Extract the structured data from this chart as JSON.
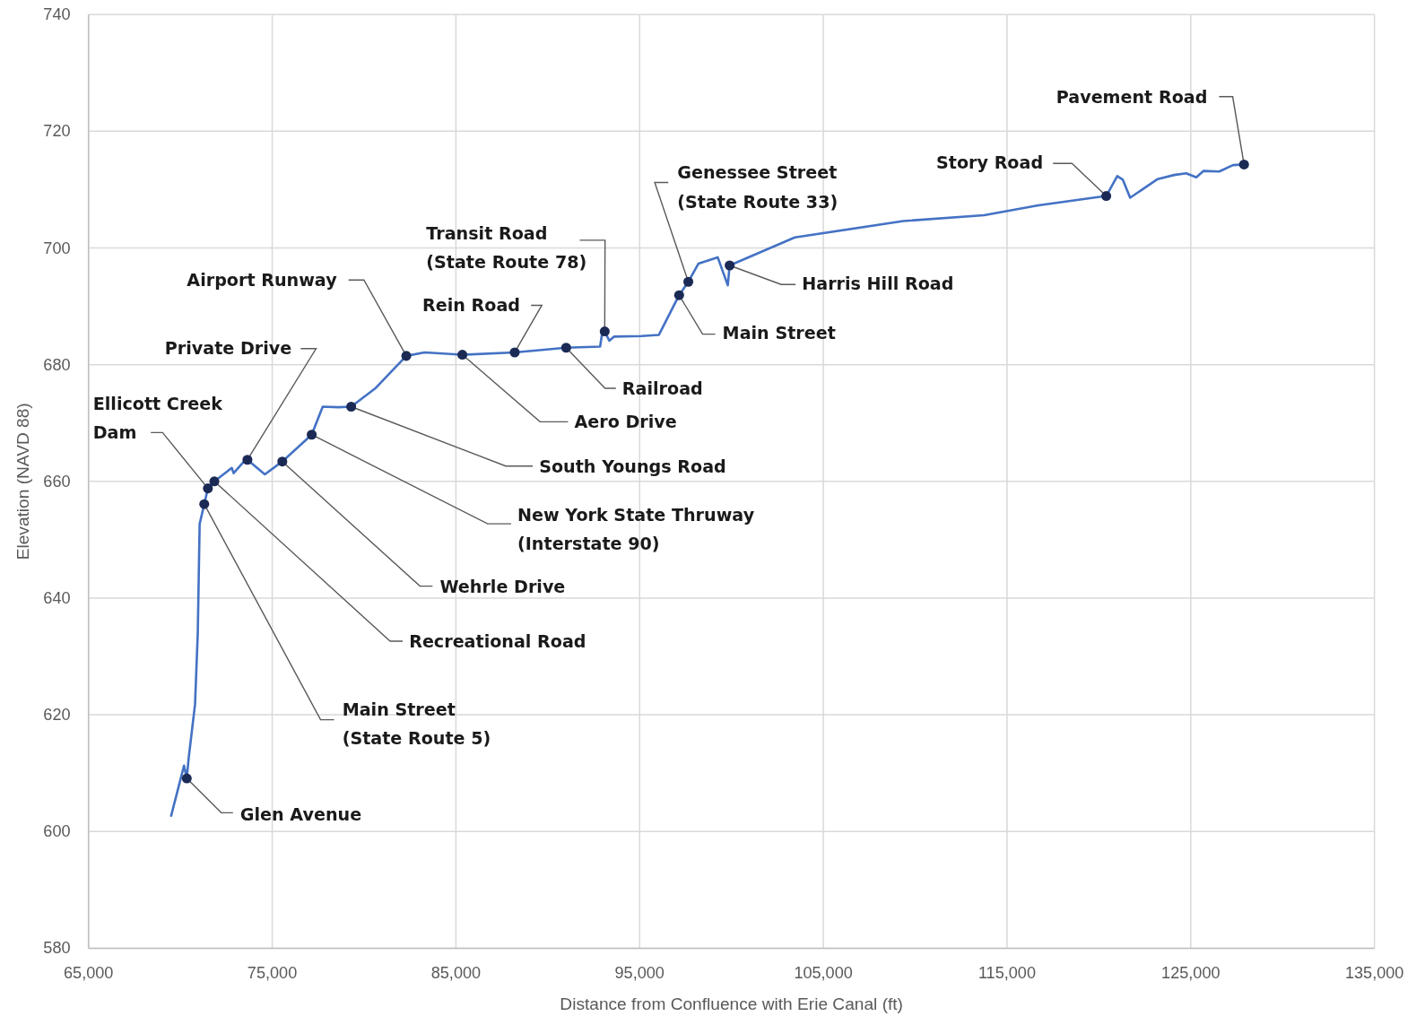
{
  "chart_data": {
    "type": "line",
    "xlabel": "Distance from Confluence with Erie Canal (ft)",
    "ylabel": "Elevation (NAVD 88)",
    "xlim": [
      65000,
      135000
    ],
    "xticks": [
      {
        "value": 65000,
        "label": "65,000"
      },
      {
        "value": 75000,
        "label": "75,000"
      },
      {
        "value": 85000,
        "label": "85,000"
      },
      {
        "value": 95000,
        "label": "95,000"
      },
      {
        "value": 105000,
        "label": "105,000"
      },
      {
        "value": 115000,
        "label": "115,000"
      },
      {
        "value": 125000,
        "label": "125,000"
      },
      {
        "value": 135000,
        "label": "135,000"
      }
    ],
    "ylim": [
      580,
      740
    ],
    "yticks": [
      580,
      600,
      620,
      640,
      660,
      680,
      700,
      720,
      740
    ],
    "grid": true,
    "series": [
      {
        "color": "#4472c4",
        "marker": "none",
        "line_style": "solid",
        "x": [
          69500,
          70200,
          70350,
          70450,
          70800,
          70950,
          71050,
          71300,
          71500,
          71850,
          72550,
          72800,
          72900,
          73550,
          73650,
          74600,
          75550,
          77150,
          77750,
          78600,
          79300,
          80600,
          82300,
          83300,
          85350,
          88200,
          91000,
          92850,
          92950,
          93100,
          93350,
          93600,
          95100,
          96050,
          97150,
          97650,
          98200,
          99250,
          99800,
          99900,
          103450,
          109350,
          113750,
          116700,
          120400,
          121000,
          121300,
          121700,
          123200,
          124100,
          124750,
          125300,
          125700,
          126550,
          127300,
          127900
        ],
        "values": [
          602.7,
          611.3,
          609.1,
          612.5,
          621.8,
          634.2,
          652.7,
          656.1,
          658.8,
          660.0,
          661.7,
          662.3,
          661.4,
          663.7,
          663.7,
          661.2,
          663.4,
          668.0,
          672.8,
          672.7,
          672.8,
          675.9,
          681.5,
          682.1,
          681.7,
          682.1,
          682.9,
          683.1,
          685.2,
          685.7,
          684.1,
          684.8,
          684.9,
          685.1,
          691.9,
          694.2,
          697.3,
          698.4,
          693.6,
          697.0,
          701.8,
          704.6,
          705.6,
          707.3,
          708.9,
          712.3,
          711.7,
          708.6,
          711.8,
          712.5,
          712.8,
          712.1,
          713.2,
          713.1,
          714.2,
          714.3
        ]
      },
      {
        "type": "scatter",
        "color": "#1b2a55",
        "marker": "circle",
        "x": [
          70350,
          71300,
          71500,
          71850,
          73650,
          75550,
          77150,
          79300,
          82300,
          85350,
          88200,
          91000,
          93100,
          97150,
          97650,
          99900,
          120400,
          127900
        ],
        "values": [
          609.1,
          656.1,
          658.8,
          660.0,
          663.7,
          663.4,
          668.0,
          672.8,
          681.5,
          681.7,
          682.1,
          682.9,
          685.7,
          691.9,
          694.2,
          697.0,
          708.9,
          714.3
        ]
      }
    ],
    "annotations": [
      {
        "text": "Glen Avenue",
        "x": 70350,
        "y": 609.1
      },
      {
        "text": "Main Street (State Route 5)",
        "x": 71300,
        "y": 656.1
      },
      {
        "text": "Ellicott Creek Dam",
        "x": 71500,
        "y": 658.8
      },
      {
        "text": "Recreational Road",
        "x": 71850,
        "y": 660.0
      },
      {
        "text": "Private Drive",
        "x": 73650,
        "y": 663.7
      },
      {
        "text": "Wehrle Drive",
        "x": 75550,
        "y": 663.4
      },
      {
        "text": "New York State Thruway (Interstate 90)",
        "x": 77150,
        "y": 668.0
      },
      {
        "text": "South Youngs Road",
        "x": 79300,
        "y": 672.8
      },
      {
        "text": "Airport Runway",
        "x": 82300,
        "y": 681.5
      },
      {
        "text": "Aero Drive",
        "x": 85350,
        "y": 681.7
      },
      {
        "text": "Rein Road",
        "x": 88200,
        "y": 682.1
      },
      {
        "text": "Railroad",
        "x": 91000,
        "y": 682.9
      },
      {
        "text": "Transit Road (State Route 78)",
        "x": 93100,
        "y": 685.7
      },
      {
        "text": "Main Street",
        "x": 97150,
        "y": 691.9
      },
      {
        "text": "Genessee Street (State Route 33)",
        "x": 97650,
        "y": 694.2
      },
      {
        "text": "Harris Hill Road",
        "x": 99900,
        "y": 697.0
      },
      {
        "text": "Story Road",
        "x": 120400,
        "y": 708.9
      },
      {
        "text": "Pavement Road",
        "x": 127900,
        "y": 714.3
      }
    ]
  }
}
